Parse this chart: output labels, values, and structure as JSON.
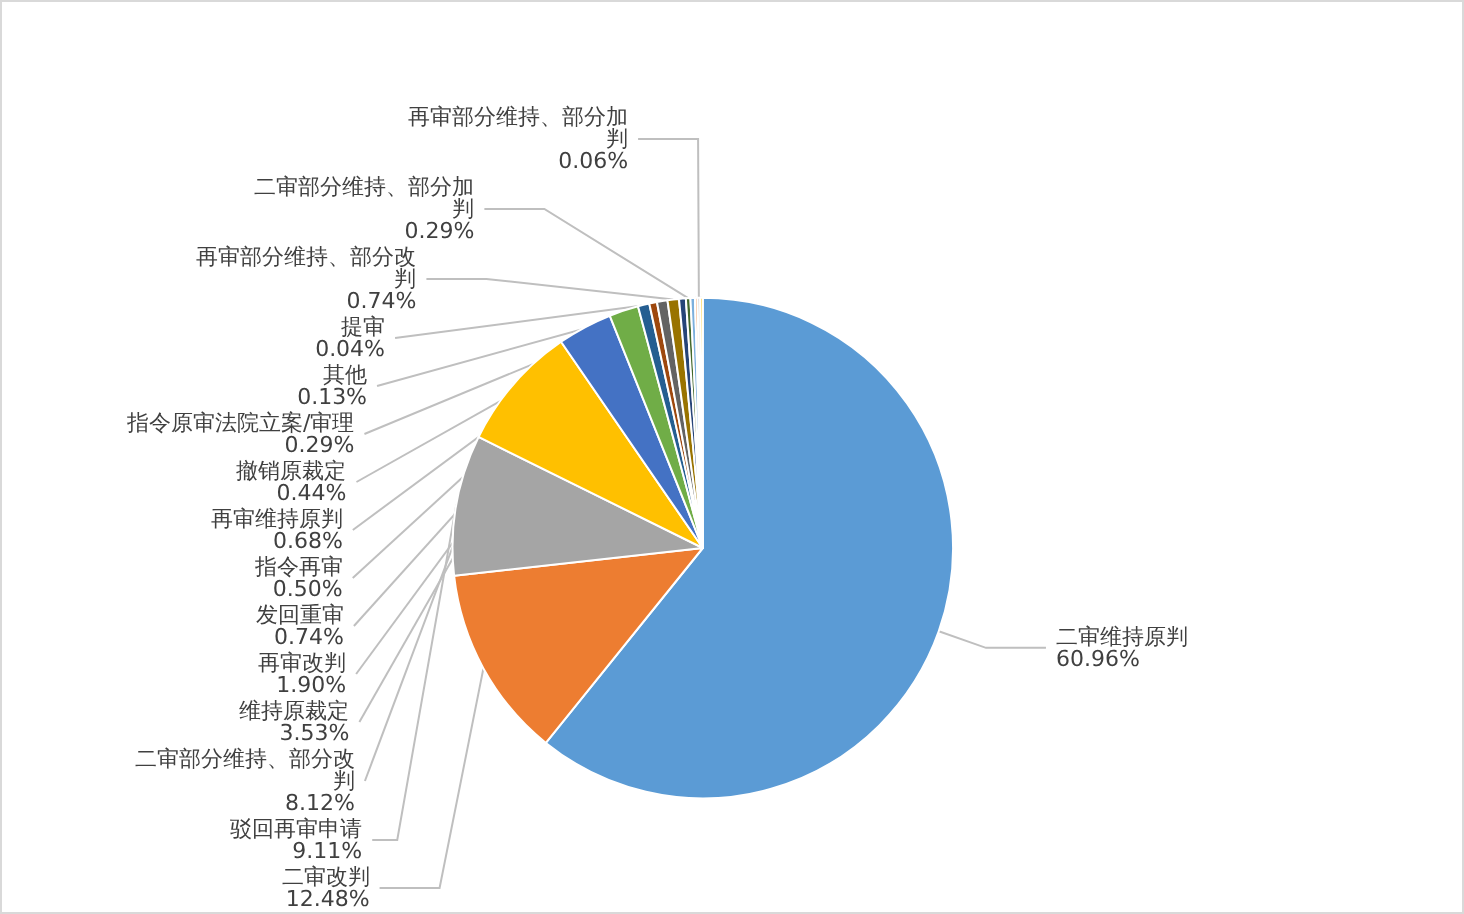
{
  "chart_data": {
    "type": "pie",
    "categories": [
      "二审维持原判",
      "二审改判",
      "驳回再审申请",
      "二审部分维持、部分改判",
      "维持原裁定",
      "再审改判",
      "发回重审",
      "指令再审",
      "再审维持原判",
      "再审部分维持、部分改判",
      "撤销原裁定",
      "二审部分维持、部分加判",
      "指令原审法院立案/审理",
      "其他",
      "再审部分维持、部分加判",
      "提审"
    ],
    "values": [
      60.96,
      12.48,
      9.11,
      8.12,
      3.53,
      1.9,
      0.74,
      0.5,
      0.68,
      0.74,
      0.44,
      0.29,
      0.29,
      0.13,
      0.06,
      0.04
    ],
    "colors": [
      "#5b9bd5",
      "#ed7d31",
      "#a5a5a5",
      "#ffc000",
      "#4472c4",
      "#70ad47",
      "#255e91",
      "#9e480e",
      "#636363",
      "#997300",
      "#264478",
      "#43682b",
      "#7cafdd",
      "#f1975a",
      "#b7b7b7",
      "#ffcd33"
    ],
    "value_labels": [
      "60.96%",
      "12.48%",
      "9.11%",
      "8.12%",
      "3.53%",
      "1.90%",
      "0.74%",
      "0.50%",
      "0.68%",
      "0.74%",
      "0.44%",
      "0.29%",
      "0.29%",
      "0.13%",
      "0.06%",
      "0.04%"
    ],
    "legend": false
  }
}
